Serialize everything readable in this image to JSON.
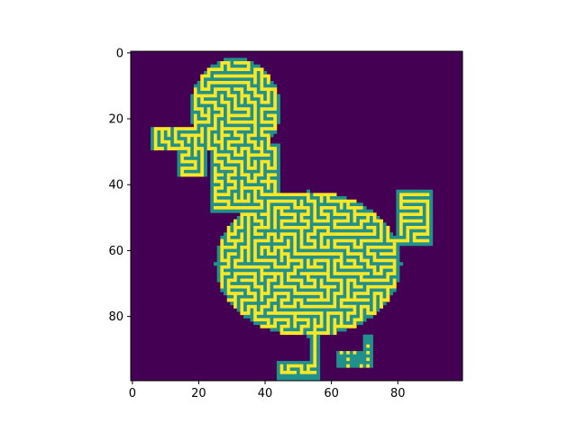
{
  "chart_data": {
    "type": "heatmap",
    "title": "",
    "xlabel": "",
    "ylabel": "",
    "grid": false,
    "shape": [
      100,
      100
    ],
    "xlim": [
      -0.5,
      99.5
    ],
    "ylim": [
      99.5,
      -0.5
    ],
    "xticks": [
      0,
      20,
      40,
      60,
      80
    ],
    "yticks": [
      0,
      20,
      40,
      60,
      80
    ],
    "xtick_labels": [
      "0",
      "20",
      "40",
      "60",
      "80"
    ],
    "ytick_labels": [
      "0",
      "20",
      "40",
      "60",
      "80"
    ],
    "colormap": "viridis",
    "levels": [
      {
        "value": 0,
        "color": "#440154"
      },
      {
        "value": 1,
        "color": "#21918c"
      },
      {
        "value": 2,
        "color": "#fde725"
      }
    ],
    "description_of_values": "0 = background outside duck, 1 = maze walls/edge inside duck, 2 = maze passages"
  }
}
